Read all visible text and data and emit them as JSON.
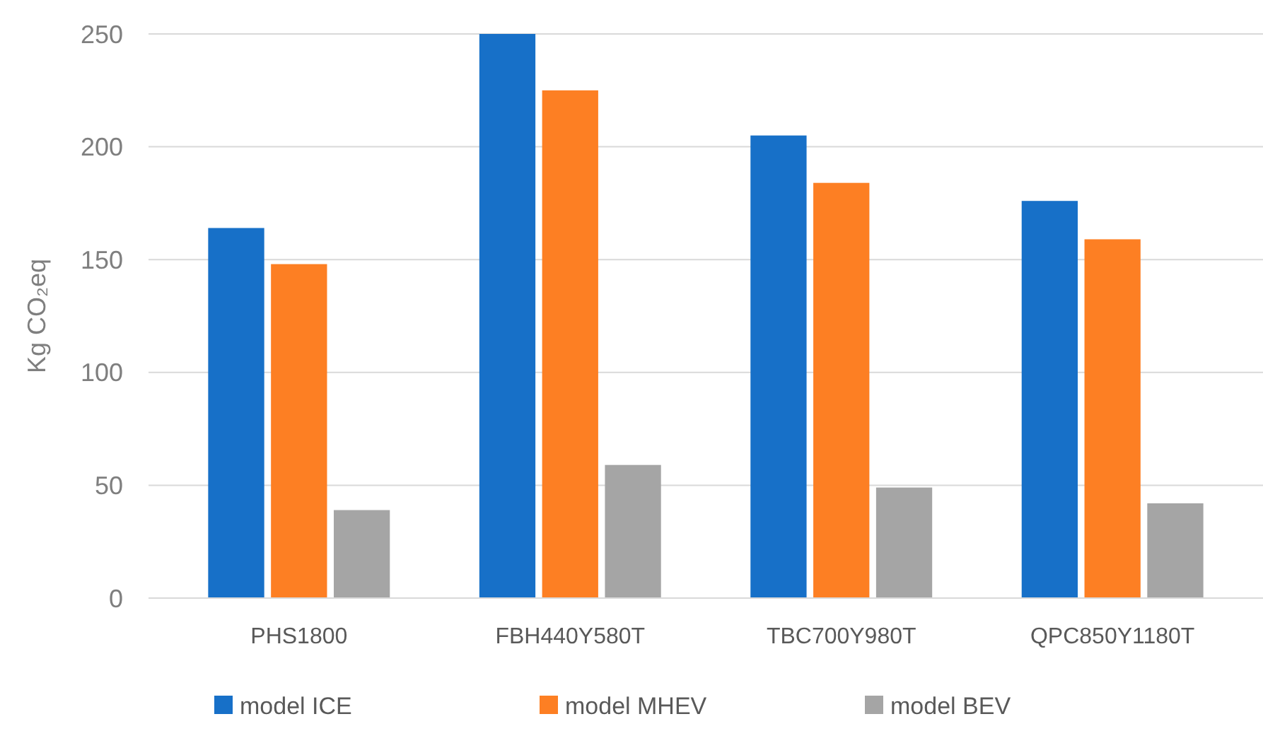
{
  "chart_data": {
    "type": "bar",
    "ylabel": "Kg CO₂eq",
    "categories": [
      "PHS1800",
      "FBH440Y580T",
      "TBC700Y980T",
      "QPC850Y1180T"
    ],
    "series": [
      {
        "name": "model ICE",
        "color": "#1770c8",
        "values": [
          164,
          250,
          205,
          176
        ]
      },
      {
        "name": "model MHEV",
        "color": "#fd7f23",
        "values": [
          148,
          225,
          184,
          159
        ]
      },
      {
        "name": "model BEV",
        "color": "#a5a5a5",
        "values": [
          39,
          59,
          49,
          42
        ]
      }
    ],
    "ylim": [
      0,
      250
    ],
    "yticks": [
      0,
      50,
      100,
      150,
      200,
      250
    ],
    "grid": "y",
    "legend": "bottom"
  }
}
